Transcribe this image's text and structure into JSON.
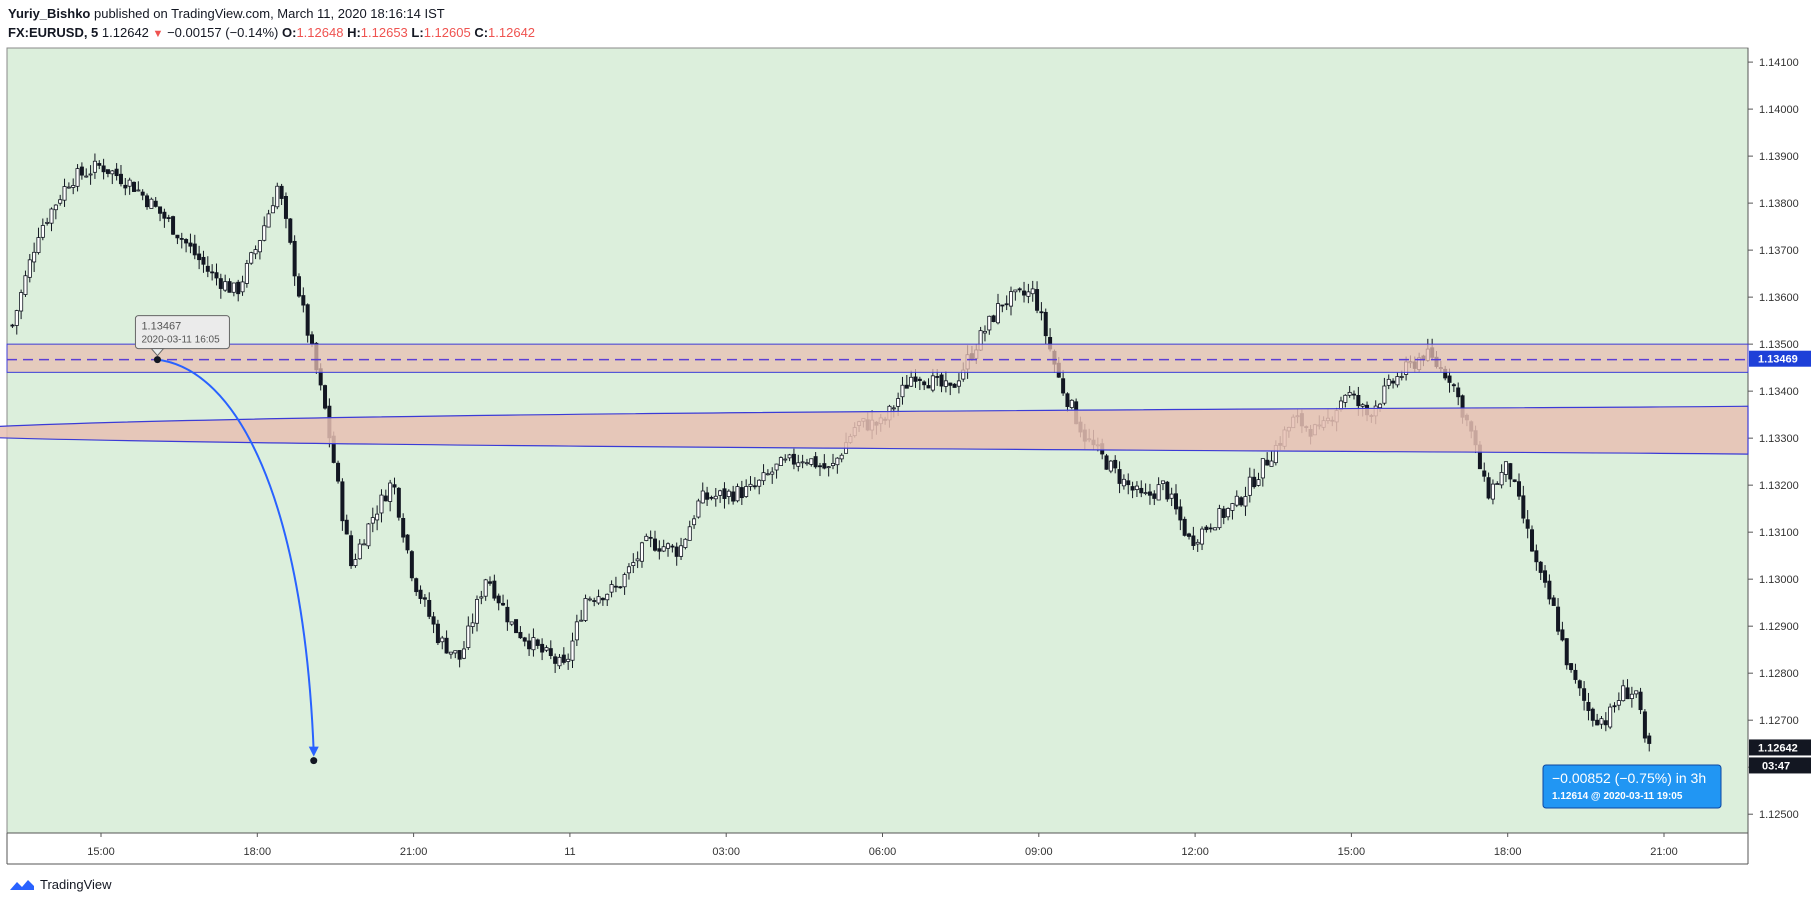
{
  "header": {
    "author": "Yuriy_Bishko",
    "published_text": " published on TradingView.com, March 11, 2020 18:16:14 IST",
    "symbol": "FX:EURUSD, 5",
    "last": "1.12642",
    "down_arrow": "▼",
    "change": "−0.00157 (−0.14%)",
    "o_label": "O:",
    "o_value": "1.12648",
    "h_label": "H:",
    "h_value": "1.12653",
    "l_label": "L:",
    "l_value": "1.12605",
    "c_label": "C:",
    "c_value": "1.12642"
  },
  "footer": {
    "brand": "TradingView",
    "logo_icon": "tradingview-logo-icon"
  },
  "colors": {
    "background": "#dcefdc",
    "zone_fill": "#e8bfb3",
    "zone_border": "#3b3bd6",
    "arrow": "#2962ff",
    "callout": "#2196f3",
    "candle": "#131722"
  },
  "chart_data": {
    "type": "candlestick",
    "title": "FX:EURUSD, 5",
    "x_tick_labels": [
      "15:00",
      "18:00",
      "21:00",
      "11",
      "03:00",
      "06:00",
      "09:00",
      "12:00",
      "15:00",
      "18:00",
      "21:00"
    ],
    "y_tick_labels": [
      "1.14100",
      "1.14000",
      "1.13900",
      "1.13800",
      "1.13700",
      "1.13600",
      "1.13500",
      "1.13400",
      "1.13300",
      "1.13200",
      "1.13100",
      "1.13000",
      "1.12900",
      "1.12800",
      "1.12700",
      "1.12600",
      "1.12500"
    ],
    "ylim": [
      1.1246,
      1.1413
    ],
    "close_path": [
      [
        13.3,
        1.1354
      ],
      [
        13.8,
        1.1374
      ],
      [
        14.4,
        1.1385
      ],
      [
        15.0,
        1.1388
      ],
      [
        15.6,
        1.1384
      ],
      [
        16.3,
        1.1376
      ],
      [
        17.1,
        1.1365
      ],
      [
        17.6,
        1.1361
      ],
      [
        18.0,
        1.1371
      ],
      [
        18.4,
        1.1384
      ],
      [
        18.8,
        1.1361
      ],
      [
        19.3,
        1.1336
      ],
      [
        19.8,
        1.1303
      ],
      [
        20.2,
        1.1313
      ],
      [
        20.6,
        1.1321
      ],
      [
        21.0,
        1.13
      ],
      [
        21.5,
        1.1287
      ],
      [
        21.9,
        1.1283
      ],
      [
        22.4,
        1.1301
      ],
      [
        22.9,
        1.129
      ],
      [
        23.4,
        1.1285
      ],
      [
        23.9,
        1.1281
      ],
      [
        24.3,
        1.1296
      ],
      [
        24.9,
        1.1298
      ],
      [
        25.5,
        1.1308
      ],
      [
        26.1,
        1.1306
      ],
      [
        26.5,
        1.1317
      ],
      [
        27.0,
        1.1318
      ],
      [
        27.5,
        1.1319
      ],
      [
        28.0,
        1.1324
      ],
      [
        28.5,
        1.1326
      ],
      [
        29.0,
        1.1323
      ],
      [
        29.5,
        1.1333
      ],
      [
        30.0,
        1.1333
      ],
      [
        30.6,
        1.1344
      ],
      [
        31.3,
        1.134
      ],
      [
        31.8,
        1.135
      ],
      [
        32.3,
        1.1359
      ],
      [
        32.9,
        1.1361
      ],
      [
        33.4,
        1.1342
      ],
      [
        33.9,
        1.133
      ],
      [
        34.6,
        1.1321
      ],
      [
        35.0,
        1.1317
      ],
      [
        35.4,
        1.132
      ],
      [
        35.9,
        1.1308
      ],
      [
        36.3,
        1.1312
      ],
      [
        36.8,
        1.1316
      ],
      [
        37.3,
        1.1324
      ],
      [
        37.9,
        1.1334
      ],
      [
        38.4,
        1.1331
      ],
      [
        38.9,
        1.134
      ],
      [
        39.3,
        1.1335
      ],
      [
        39.8,
        1.1342
      ],
      [
        40.4,
        1.1348
      ],
      [
        40.9,
        1.1343
      ],
      [
        41.3,
        1.1331
      ],
      [
        41.6,
        1.1318
      ],
      [
        42.0,
        1.1324
      ],
      [
        42.3,
        1.1313
      ],
      [
        42.6,
        1.1301
      ],
      [
        42.9,
        1.1293
      ],
      [
        43.2,
        1.128
      ],
      [
        43.6,
        1.1271
      ],
      [
        43.9,
        1.127
      ],
      [
        44.2,
        1.1276
      ],
      [
        44.5,
        1.1276
      ],
      [
        44.6,
        1.1265
      ],
      [
        44.8,
        1.1264
      ]
    ],
    "annotations": [
      {
        "type": "horizontal-zone",
        "price_from": 1.1344,
        "price_to": 1.135,
        "midline": 1.13467
      },
      {
        "type": "wedge-zone",
        "start_time": 11.2,
        "start_price": 1.1331,
        "end_upper": 1.13368,
        "end_lower": 1.13266
      },
      {
        "type": "point-label",
        "price": "1.13467",
        "time": "2020-03-11 16:05"
      },
      {
        "type": "projection",
        "change": "−0.00852 (−0.75%) in 3h",
        "target": "1.12614 @ 2020-03-11  19:05"
      }
    ],
    "price_label": "1.13469",
    "last_price_label": "1.12642",
    "countdown_label": "03:47"
  }
}
